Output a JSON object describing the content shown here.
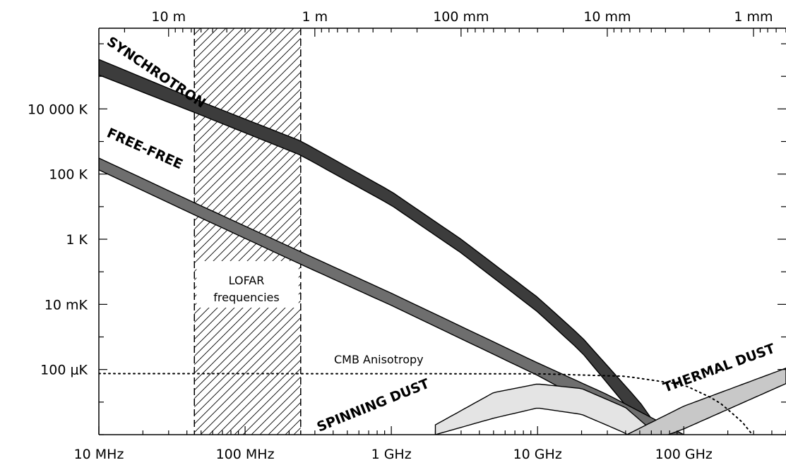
{
  "chart_data": {
    "type": "area",
    "x_axis": {
      "scale": "log",
      "unit": "Hz",
      "range": [
        10000000,
        500000000000
      ],
      "tick_labels": [
        {
          "value": 10000000,
          "label": "10 MHz"
        },
        {
          "value": 100000000,
          "label": "100 MHz"
        },
        {
          "value": 1000000000,
          "label": "1 GHz"
        },
        {
          "value": 10000000000,
          "label": "10 GHz"
        },
        {
          "value": 100000000000,
          "label": "100 GHz"
        }
      ]
    },
    "top_axis": {
      "scale": "log",
      "quantity": "wavelength",
      "tick_labels": [
        {
          "value_m": 10,
          "label": "10 m"
        },
        {
          "value_m": 1,
          "label": "1 m"
        },
        {
          "value_m": 0.1,
          "label": "100 mm"
        },
        {
          "value_m": 0.01,
          "label": "10 mm"
        },
        {
          "value_m": 0.001,
          "label": "1 mm"
        }
      ]
    },
    "y_axis": {
      "scale": "log",
      "unit": "K",
      "range": [
        1e-06,
        3000000
      ],
      "tick_labels": [
        {
          "value": 10000,
          "label": "10 000 K"
        },
        {
          "value": 100,
          "label": "100 K"
        },
        {
          "value": 1,
          "label": "1 K"
        },
        {
          "value": 0.01,
          "label": "10 mK"
        },
        {
          "value": 0.0001,
          "label": "100 μK"
        }
      ]
    },
    "grid": false,
    "shaded_region": {
      "label": "LOFAR frequencies",
      "x_range": [
        45000000,
        240000000
      ]
    },
    "series": [
      {
        "name": "SYNCHROTRON",
        "color": "#3c3c3c",
        "points": [
          {
            "x": 10000000,
            "lo": 110000,
            "hi": 330000
          },
          {
            "x": 45000000,
            "lo": 7800,
            "hi": 20000
          },
          {
            "x": 240000000,
            "lo": 380,
            "hi": 1040
          },
          {
            "x": 1000000000,
            "lo": 11,
            "hi": 29
          },
          {
            "x": 3000000000,
            "lo": 0.38,
            "hi": 1.0
          },
          {
            "x": 10000000000,
            "lo": 0.0059,
            "hi": 0.0165
          },
          {
            "x": 20000000000,
            "lo": 0.00034,
            "hi": 0.001
          },
          {
            "x": 50000000000,
            "lo": 2.4e-06,
            "hi": 1e-05
          },
          {
            "x": 80000000000,
            "lo": 1e-07,
            "hi": 5e-07
          }
        ]
      },
      {
        "name": "FREE-FREE",
        "color": "#6e6e6e",
        "points": [
          {
            "x": 10000000,
            "lo": 135,
            "hi": 310
          },
          {
            "x": 45000000,
            "lo": 5.6,
            "hi": 13.2
          },
          {
            "x": 240000000,
            "lo": 0.17,
            "hi": 0.41
          },
          {
            "x": 1000000000,
            "lo": 0.0093,
            "hi": 0.022
          },
          {
            "x": 10000000000,
            "lo": 6.6e-05,
            "hi": 0.00016
          },
          {
            "x": 30000000000,
            "lo": 4.6e-06,
            "hi": 1.7e-05
          },
          {
            "x": 100000000000,
            "lo": 2e-07,
            "hi": 1e-06
          }
        ]
      },
      {
        "name": "SPINNING DUST",
        "color": "#e4e4e4",
        "points": [
          {
            "x": 2000000000,
            "lo": 1e-06,
            "hi": 2e-06
          },
          {
            "x": 5000000000,
            "lo": 3.2e-06,
            "hi": 1.95e-05
          },
          {
            "x": 10000000000,
            "lo": 6.6e-06,
            "hi": 3.6e-05
          },
          {
            "x": 20000000000,
            "lo": 4.2e-06,
            "hi": 2.6e-05
          },
          {
            "x": 40000000000,
            "lo": 1.1e-06,
            "hi": 6.8e-06
          },
          {
            "x": 60000000000,
            "lo": 2e-07,
            "hi": 1.4e-06
          }
        ]
      },
      {
        "name": "THERMAL DUST",
        "color": "#c8c8c8",
        "points": [
          {
            "x": 30000000000,
            "lo": 2e-07,
            "hi": 5e-07
          },
          {
            "x": 100000000000,
            "lo": 1.5e-06,
            "hi": 7.5e-06
          },
          {
            "x": 500000000000,
            "lo": 3.7e-05,
            "hi": 0.00011
          }
        ]
      },
      {
        "name": "CMB Anisotropy",
        "style": "dotted",
        "points": [
          {
            "x": 10000000,
            "y": 7.5e-05
          },
          {
            "x": 10000000000,
            "y": 7.4e-05
          },
          {
            "x": 40000000000,
            "y": 6.2e-05
          },
          {
            "x": 100000000000,
            "y": 3.4e-05
          },
          {
            "x": 170000000000,
            "y": 1.1e-05
          },
          {
            "x": 250000000000,
            "y": 2.5e-06
          },
          {
            "x": 300000000000,
            "y": 9e-07
          }
        ]
      }
    ]
  }
}
